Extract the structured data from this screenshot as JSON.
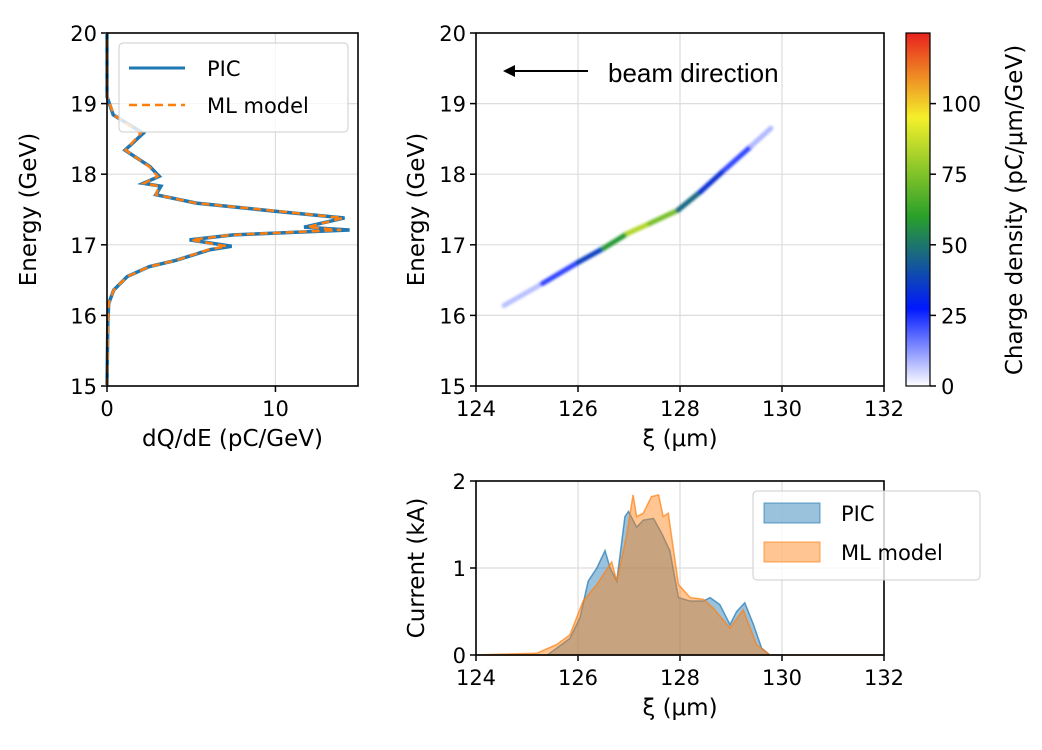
{
  "chart_data": [
    {
      "type": "line",
      "xlabel": "dQ/dE (pC/GeV)",
      "ylabel": "Energy (GeV)",
      "xlim": [
        0,
        14.9
      ],
      "ylim": [
        15,
        20
      ],
      "xticks": [
        "0",
        "10"
      ],
      "yticks": [
        "15",
        "16",
        "17",
        "18",
        "19",
        "20"
      ],
      "grid": true,
      "legend": "top-right",
      "series": [
        {
          "name": "PIC",
          "color": "#1f77b4",
          "style": "solid",
          "points": [
            [
              0,
              15.0
            ],
            [
              0.05,
              15.9
            ],
            [
              0.1,
              16.17
            ],
            [
              0.4,
              16.36
            ],
            [
              1.2,
              16.55
            ],
            [
              2.5,
              16.69
            ],
            [
              4.1,
              16.78
            ],
            [
              6.1,
              16.93
            ],
            [
              7.4,
              16.98
            ],
            [
              4.9,
              17.07
            ],
            [
              7.5,
              17.14
            ],
            [
              14.4,
              17.21
            ],
            [
              11.7,
              17.25
            ],
            [
              14.1,
              17.38
            ],
            [
              10.2,
              17.47
            ],
            [
              5.3,
              17.59
            ],
            [
              2.9,
              17.71
            ],
            [
              3.2,
              17.83
            ],
            [
              2.15,
              17.87
            ],
            [
              3.1,
              17.97
            ],
            [
              2.54,
              18.11
            ],
            [
              1.07,
              18.34
            ],
            [
              2.15,
              18.58
            ],
            [
              0.37,
              18.84
            ],
            [
              0,
              19.1
            ],
            [
              0,
              20
            ]
          ]
        },
        {
          "name": "ML model",
          "color": "#ff7f0e",
          "style": "dashed",
          "points": [
            [
              0,
              15.0
            ],
            [
              0.05,
              15.9
            ],
            [
              0.1,
              16.17
            ],
            [
              0.4,
              16.36
            ],
            [
              1.2,
              16.55
            ],
            [
              2.5,
              16.69
            ],
            [
              4.1,
              16.78
            ],
            [
              6.0,
              16.93
            ],
            [
              7.1,
              16.98
            ],
            [
              5.0,
              17.07
            ],
            [
              7.4,
              17.14
            ],
            [
              13.9,
              17.21
            ],
            [
              11.9,
              17.25
            ],
            [
              14.0,
              17.38
            ],
            [
              10.4,
              17.47
            ],
            [
              5.3,
              17.59
            ],
            [
              2.9,
              17.71
            ],
            [
              3.1,
              17.83
            ],
            [
              2.2,
              17.87
            ],
            [
              3.0,
              17.97
            ],
            [
              2.5,
              18.11
            ],
            [
              1.1,
              18.34
            ],
            [
              2.0,
              18.58
            ],
            [
              0.4,
              18.84
            ],
            [
              0,
              19.1
            ],
            [
              0,
              20
            ]
          ]
        }
      ]
    },
    {
      "type": "heatmap",
      "xlabel": "ξ (μm)",
      "ylabel": "Energy (GeV)",
      "xlim": [
        124,
        132
      ],
      "ylim": [
        15,
        20
      ],
      "xticks": [
        "124",
        "126",
        "128",
        "130",
        "132"
      ],
      "yticks": [
        "15",
        "16",
        "17",
        "18",
        "19",
        "20"
      ],
      "grid": true,
      "annotation": "beam direction",
      "colorbar": {
        "label": "Charge density (pC/μm/GeV)",
        "range": [
          0,
          125
        ],
        "ticks": [
          "0",
          "25",
          "50",
          "75",
          "100"
        ],
        "colormap": [
          "#ffffff",
          "#0018ff",
          "#2aa02a",
          "#f4f02a",
          "#e8221e"
        ]
      },
      "ridge": [
        {
          "xi": 124.55,
          "energy": 16.14,
          "density": 3
        },
        {
          "xi": 125.3,
          "energy": 16.45,
          "density": 12
        },
        {
          "xi": 126.0,
          "energy": 16.75,
          "density": 32
        },
        {
          "xi": 126.5,
          "energy": 16.95,
          "density": 42
        },
        {
          "xi": 126.97,
          "energy": 17.16,
          "density": 75
        },
        {
          "xi": 127.4,
          "energy": 17.3,
          "density": 92
        },
        {
          "xi": 127.96,
          "energy": 17.49,
          "density": 55
        },
        {
          "xi": 128.4,
          "energy": 17.75,
          "density": 38
        },
        {
          "xi": 128.87,
          "energy": 18.06,
          "density": 30
        },
        {
          "xi": 129.4,
          "energy": 18.4,
          "density": 14
        },
        {
          "xi": 129.78,
          "energy": 18.65,
          "density": 3
        }
      ]
    },
    {
      "type": "area",
      "xlabel": "ξ (μm)",
      "ylabel": "Current (kA)",
      "xlim": [
        124,
        132
      ],
      "ylim": [
        0,
        2.0
      ],
      "xticks": [
        "124",
        "126",
        "128",
        "130",
        "132"
      ],
      "yticks": [
        "0",
        "1",
        "2"
      ],
      "grid": true,
      "legend": "top-right",
      "series": [
        {
          "name": "PIC",
          "color": "#1f77b4",
          "points": [
            [
              124,
              0
            ],
            [
              125.4,
              0
            ],
            [
              125.84,
              0.19
            ],
            [
              126.04,
              0.43
            ],
            [
              126.2,
              0.85
            ],
            [
              126.37,
              1.0
            ],
            [
              126.53,
              1.2
            ],
            [
              126.63,
              1.0
            ],
            [
              126.76,
              0.85
            ],
            [
              126.92,
              1.59
            ],
            [
              126.99,
              1.65
            ],
            [
              127.15,
              1.47
            ],
            [
              127.28,
              1.55
            ],
            [
              127.48,
              1.57
            ],
            [
              127.64,
              1.4
            ],
            [
              127.8,
              1.2
            ],
            [
              127.97,
              0.66
            ],
            [
              128.2,
              0.62
            ],
            [
              128.46,
              0.62
            ],
            [
              128.59,
              0.66
            ],
            [
              128.78,
              0.58
            ],
            [
              128.98,
              0.35
            ],
            [
              129.11,
              0.5
            ],
            [
              129.27,
              0.6
            ],
            [
              129.44,
              0.35
            ],
            [
              129.6,
              0.08
            ],
            [
              129.76,
              0
            ],
            [
              132,
              0
            ]
          ]
        },
        {
          "name": "ML model",
          "color": "#ff7f0e",
          "points": [
            [
              124,
              0
            ],
            [
              124.54,
              0.01
            ],
            [
              125.19,
              0.02
            ],
            [
              125.58,
              0.12
            ],
            [
              125.84,
              0.23
            ],
            [
              126.1,
              0.62
            ],
            [
              126.37,
              0.81
            ],
            [
              126.66,
              1.07
            ],
            [
              126.76,
              0.85
            ],
            [
              126.95,
              1.36
            ],
            [
              127.08,
              1.84
            ],
            [
              127.15,
              1.59
            ],
            [
              127.28,
              1.63
            ],
            [
              127.44,
              1.82
            ],
            [
              127.58,
              1.84
            ],
            [
              127.67,
              1.59
            ],
            [
              127.77,
              1.63
            ],
            [
              127.97,
              0.81
            ],
            [
              128.2,
              0.66
            ],
            [
              128.46,
              0.64
            ],
            [
              128.65,
              0.54
            ],
            [
              128.98,
              0.31
            ],
            [
              129.24,
              0.52
            ],
            [
              129.5,
              0.12
            ],
            [
              129.76,
              0
            ],
            [
              132,
              0
            ]
          ]
        }
      ]
    }
  ]
}
